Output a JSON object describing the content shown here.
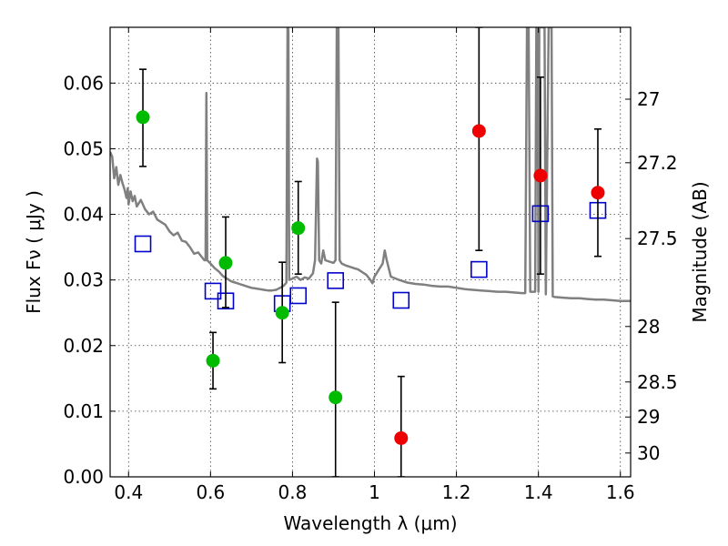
{
  "chart_data": {
    "type": "scatter",
    "xlabel": "Wavelength  λ (μm)",
    "ylabel": "Flux  Fν  ( μJy )",
    "ylabel_right": "Magnitude (AB)",
    "xlim": [
      0.355,
      1.625
    ],
    "ylim": [
      0.0,
      0.0685
    ],
    "grid": true,
    "x_ticks": [
      0.4,
      0.6,
      0.8,
      1.0,
      1.2,
      1.4,
      1.6
    ],
    "x_tick_labels": [
      "0.4",
      "0.6",
      "0.8",
      "1",
      "1.2",
      "1.4",
      "1.6"
    ],
    "y_ticks": [
      0.0,
      0.01,
      0.02,
      0.03,
      0.04,
      0.05,
      0.06
    ],
    "y_tick_labels": [
      "0.00",
      "0.01",
      "0.02",
      "0.03",
      "0.04",
      "0.05",
      "0.06"
    ],
    "right_ticks": [
      {
        "label": "27",
        "mag": 27.0
      },
      {
        "label": "27.2",
        "mag": 27.2
      },
      {
        "label": "27.5",
        "mag": 27.5
      },
      {
        "label": "28",
        "mag": 28.0
      },
      {
        "label": "28.5",
        "mag": 28.5
      },
      {
        "label": "29",
        "mag": 29.0
      },
      {
        "label": "30",
        "mag": 30.0
      }
    ],
    "series": [
      {
        "name": "observed (green)",
        "marker": "circle",
        "color": "#00bb00",
        "points": [
          {
            "x": 0.435,
            "y": 0.0548,
            "err_lo": 0.0473,
            "err_hi": 0.0621
          },
          {
            "x": 0.606,
            "y": 0.0177,
            "err_lo": 0.0134,
            "err_hi": 0.022
          },
          {
            "x": 0.637,
            "y": 0.0326,
            "err_lo": 0.0258,
            "err_hi": 0.0396
          },
          {
            "x": 0.775,
            "y": 0.025,
            "err_lo": 0.0174,
            "err_hi": 0.0327
          },
          {
            "x": 0.814,
            "y": 0.0379,
            "err_lo": 0.0309,
            "err_hi": 0.045
          },
          {
            "x": 0.905,
            "y": 0.0121,
            "err_lo": 0.0,
            "err_hi": 0.0266
          }
        ]
      },
      {
        "name": "observed (red)",
        "marker": "circle",
        "color": "#ee0000",
        "points": [
          {
            "x": 1.065,
            "y": 0.0059,
            "err_lo": 0.0,
            "err_hi": 0.0153
          },
          {
            "x": 1.255,
            "y": 0.0527,
            "err_lo": 0.0345,
            "err_hi": 0.0685
          },
          {
            "x": 1.405,
            "y": 0.0459,
            "err_lo": 0.0309,
            "err_hi": 0.0609
          },
          {
            "x": 1.545,
            "y": 0.0433,
            "err_lo": 0.0336,
            "err_hi": 0.053
          }
        ]
      },
      {
        "name": "model photometry",
        "marker": "square-open",
        "color": "#0000cc",
        "points": [
          {
            "x": 0.435,
            "y": 0.0355
          },
          {
            "x": 0.606,
            "y": 0.0283
          },
          {
            "x": 0.637,
            "y": 0.0268
          },
          {
            "x": 0.775,
            "y": 0.0264
          },
          {
            "x": 0.814,
            "y": 0.0276
          },
          {
            "x": 0.905,
            "y": 0.0299
          },
          {
            "x": 1.065,
            "y": 0.0269
          },
          {
            "x": 1.255,
            "y": 0.0316
          },
          {
            "x": 1.405,
            "y": 0.0401
          },
          {
            "x": 1.545,
            "y": 0.0406
          }
        ]
      },
      {
        "name": "model SED",
        "type": "line",
        "color": "#808080",
        "points": [
          [
            0.355,
            0.0495
          ],
          [
            0.36,
            0.0488
          ],
          [
            0.365,
            0.0455
          ],
          [
            0.37,
            0.0472
          ],
          [
            0.375,
            0.0445
          ],
          [
            0.38,
            0.046
          ],
          [
            0.385,
            0.0448
          ],
          [
            0.39,
            0.0438
          ],
          [
            0.395,
            0.0425
          ],
          [
            0.398,
            0.044
          ],
          [
            0.4,
            0.0415
          ],
          [
            0.405,
            0.0435
          ],
          [
            0.41,
            0.042
          ],
          [
            0.415,
            0.0428
          ],
          [
            0.42,
            0.0412
          ],
          [
            0.43,
            0.0422
          ],
          [
            0.44,
            0.0408
          ],
          [
            0.45,
            0.04
          ],
          [
            0.46,
            0.0404
          ],
          [
            0.47,
            0.0392
          ],
          [
            0.48,
            0.0388
          ],
          [
            0.49,
            0.0384
          ],
          [
            0.5,
            0.0374
          ],
          [
            0.51,
            0.0368
          ],
          [
            0.52,
            0.0372
          ],
          [
            0.53,
            0.036
          ],
          [
            0.54,
            0.0358
          ],
          [
            0.55,
            0.035
          ],
          [
            0.56,
            0.034
          ],
          [
            0.57,
            0.0342
          ],
          [
            0.58,
            0.0334
          ],
          [
            0.585,
            0.033
          ],
          [
            0.588,
            0.033
          ],
          [
            0.59,
            0.0585
          ],
          [
            0.592,
            0.033
          ],
          [
            0.6,
            0.0325
          ],
          [
            0.61,
            0.0318
          ],
          [
            0.62,
            0.0313
          ],
          [
            0.63,
            0.0306
          ],
          [
            0.64,
            0.0302
          ],
          [
            0.65,
            0.0298
          ],
          [
            0.66,
            0.0296
          ],
          [
            0.67,
            0.0294
          ],
          [
            0.68,
            0.0292
          ],
          [
            0.69,
            0.029
          ],
          [
            0.7,
            0.0288
          ],
          [
            0.71,
            0.0287
          ],
          [
            0.72,
            0.0286
          ],
          [
            0.73,
            0.0285
          ],
          [
            0.74,
            0.0284
          ],
          [
            0.75,
            0.0284
          ],
          [
            0.76,
            0.0285
          ],
          [
            0.77,
            0.0288
          ],
          [
            0.78,
            0.0292
          ],
          [
            0.785,
            0.0296
          ],
          [
            0.788,
            0.0685
          ],
          [
            0.789,
            0.0685
          ],
          [
            0.79,
            0.068
          ],
          [
            0.792,
            0.03
          ],
          [
            0.8,
            0.0302
          ],
          [
            0.81,
            0.0305
          ],
          [
            0.82,
            0.03
          ],
          [
            0.83,
            0.0304
          ],
          [
            0.84,
            0.0302
          ],
          [
            0.85,
            0.031
          ],
          [
            0.855,
            0.033
          ],
          [
            0.86,
            0.0485
          ],
          [
            0.862,
            0.048
          ],
          [
            0.865,
            0.033
          ],
          [
            0.87,
            0.0325
          ],
          [
            0.875,
            0.0345
          ],
          [
            0.88,
            0.033
          ],
          [
            0.89,
            0.0328
          ],
          [
            0.9,
            0.0326
          ],
          [
            0.905,
            0.033
          ],
          [
            0.908,
            0.0685
          ],
          [
            0.912,
            0.0685
          ],
          [
            0.915,
            0.033
          ],
          [
            0.92,
            0.0325
          ],
          [
            0.93,
            0.0322
          ],
          [
            0.94,
            0.032
          ],
          [
            0.95,
            0.0318
          ],
          [
            0.96,
            0.0316
          ],
          [
            0.97,
            0.0312
          ],
          [
            0.98,
            0.0308
          ],
          [
            0.99,
            0.03
          ],
          [
            0.995,
            0.0295
          ],
          [
            1.0,
            0.0305
          ],
          [
            1.01,
            0.0315
          ],
          [
            1.02,
            0.0325
          ],
          [
            1.025,
            0.0345
          ],
          [
            1.03,
            0.033
          ],
          [
            1.04,
            0.0305
          ],
          [
            1.06,
            0.03
          ],
          [
            1.08,
            0.0296
          ],
          [
            1.1,
            0.0294
          ],
          [
            1.12,
            0.0293
          ],
          [
            1.14,
            0.0291
          ],
          [
            1.16,
            0.029
          ],
          [
            1.18,
            0.029
          ],
          [
            1.2,
            0.0288
          ],
          [
            1.22,
            0.0286
          ],
          [
            1.24,
            0.0285
          ],
          [
            1.26,
            0.0284
          ],
          [
            1.28,
            0.0283
          ],
          [
            1.3,
            0.0282
          ],
          [
            1.32,
            0.0282
          ],
          [
            1.34,
            0.0281
          ],
          [
            1.36,
            0.028
          ],
          [
            1.368,
            0.028
          ],
          [
            1.372,
            0.0685
          ],
          [
            1.376,
            0.0685
          ],
          [
            1.38,
            0.0282
          ],
          [
            1.392,
            0.0282
          ],
          [
            1.395,
            0.0685
          ],
          [
            1.398,
            0.0685
          ],
          [
            1.4,
            0.0282
          ],
          [
            1.402,
            0.0685
          ],
          [
            1.41,
            0.0685
          ],
          [
            1.415,
            0.0685
          ],
          [
            1.418,
            0.0278
          ],
          [
            1.425,
            0.0685
          ],
          [
            1.432,
            0.0685
          ],
          [
            1.435,
            0.0275
          ],
          [
            1.44,
            0.0274
          ],
          [
            1.46,
            0.0273
          ],
          [
            1.48,
            0.0272
          ],
          [
            1.5,
            0.0272
          ],
          [
            1.52,
            0.0271
          ],
          [
            1.54,
            0.027
          ],
          [
            1.56,
            0.027
          ],
          [
            1.58,
            0.0269
          ],
          [
            1.6,
            0.0268
          ],
          [
            1.625,
            0.0268
          ]
        ]
      }
    ]
  }
}
